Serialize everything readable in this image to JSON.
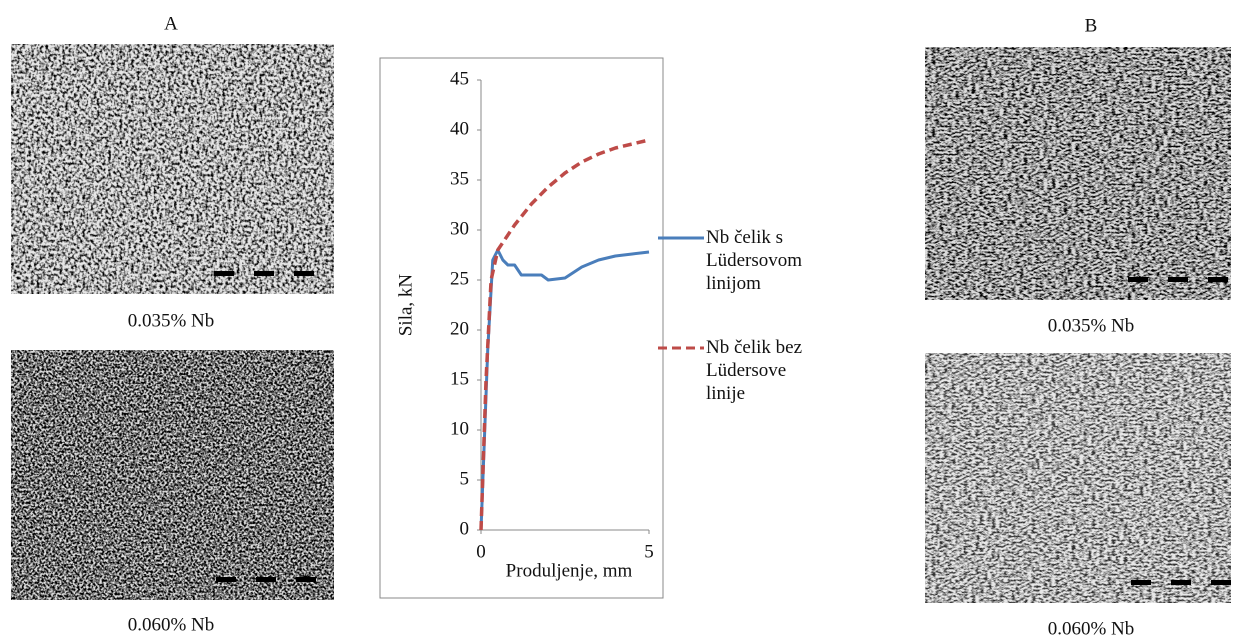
{
  "panels": {
    "left_label": "A",
    "left_top_caption": "0.035% Nb",
    "left_bottom_caption": "0.060% Nb",
    "right_label": "B",
    "right_top_caption": "0.035% Nb",
    "right_bottom_caption": "0.060% Nb"
  },
  "chart_data": {
    "type": "line",
    "x_label": "Produljenje, mm",
    "y_label": "Sila, kN",
    "xlim": [
      0,
      5
    ],
    "xticks": [
      0,
      5
    ],
    "ylim": [
      0,
      45
    ],
    "yticks": [
      0,
      5,
      10,
      15,
      20,
      25,
      30,
      35,
      40,
      45
    ],
    "legend": "right",
    "series": [
      {
        "name": "Nb čelik s Lüdersovom linijom",
        "color": "#4a7ebb",
        "dash": "solid",
        "x": [
          0,
          0.2,
          0.35,
          0.5,
          0.65,
          0.8,
          1.0,
          1.2,
          1.5,
          1.8,
          2.0,
          2.5,
          3.0,
          3.5,
          4.0,
          4.5,
          5.0
        ],
        "values": [
          0,
          18,
          27,
          28,
          27,
          26.5,
          26.5,
          25.5,
          25.5,
          25.5,
          25,
          25.2,
          26.3,
          27,
          27.4,
          27.6,
          27.8
        ]
      },
      {
        "name": "Nb čelik bez Lüdersove linije",
        "color": "#be4b48",
        "dash": "dashed",
        "x": [
          0,
          0.15,
          0.3,
          0.5,
          1.0,
          1.5,
          2.0,
          2.5,
          3.0,
          3.5,
          4.0,
          4.5,
          5.0
        ],
        "values": [
          0,
          15,
          25,
          28,
          30.5,
          32.6,
          34.3,
          35.7,
          36.8,
          37.6,
          38.2,
          38.6,
          39
        ]
      }
    ]
  }
}
